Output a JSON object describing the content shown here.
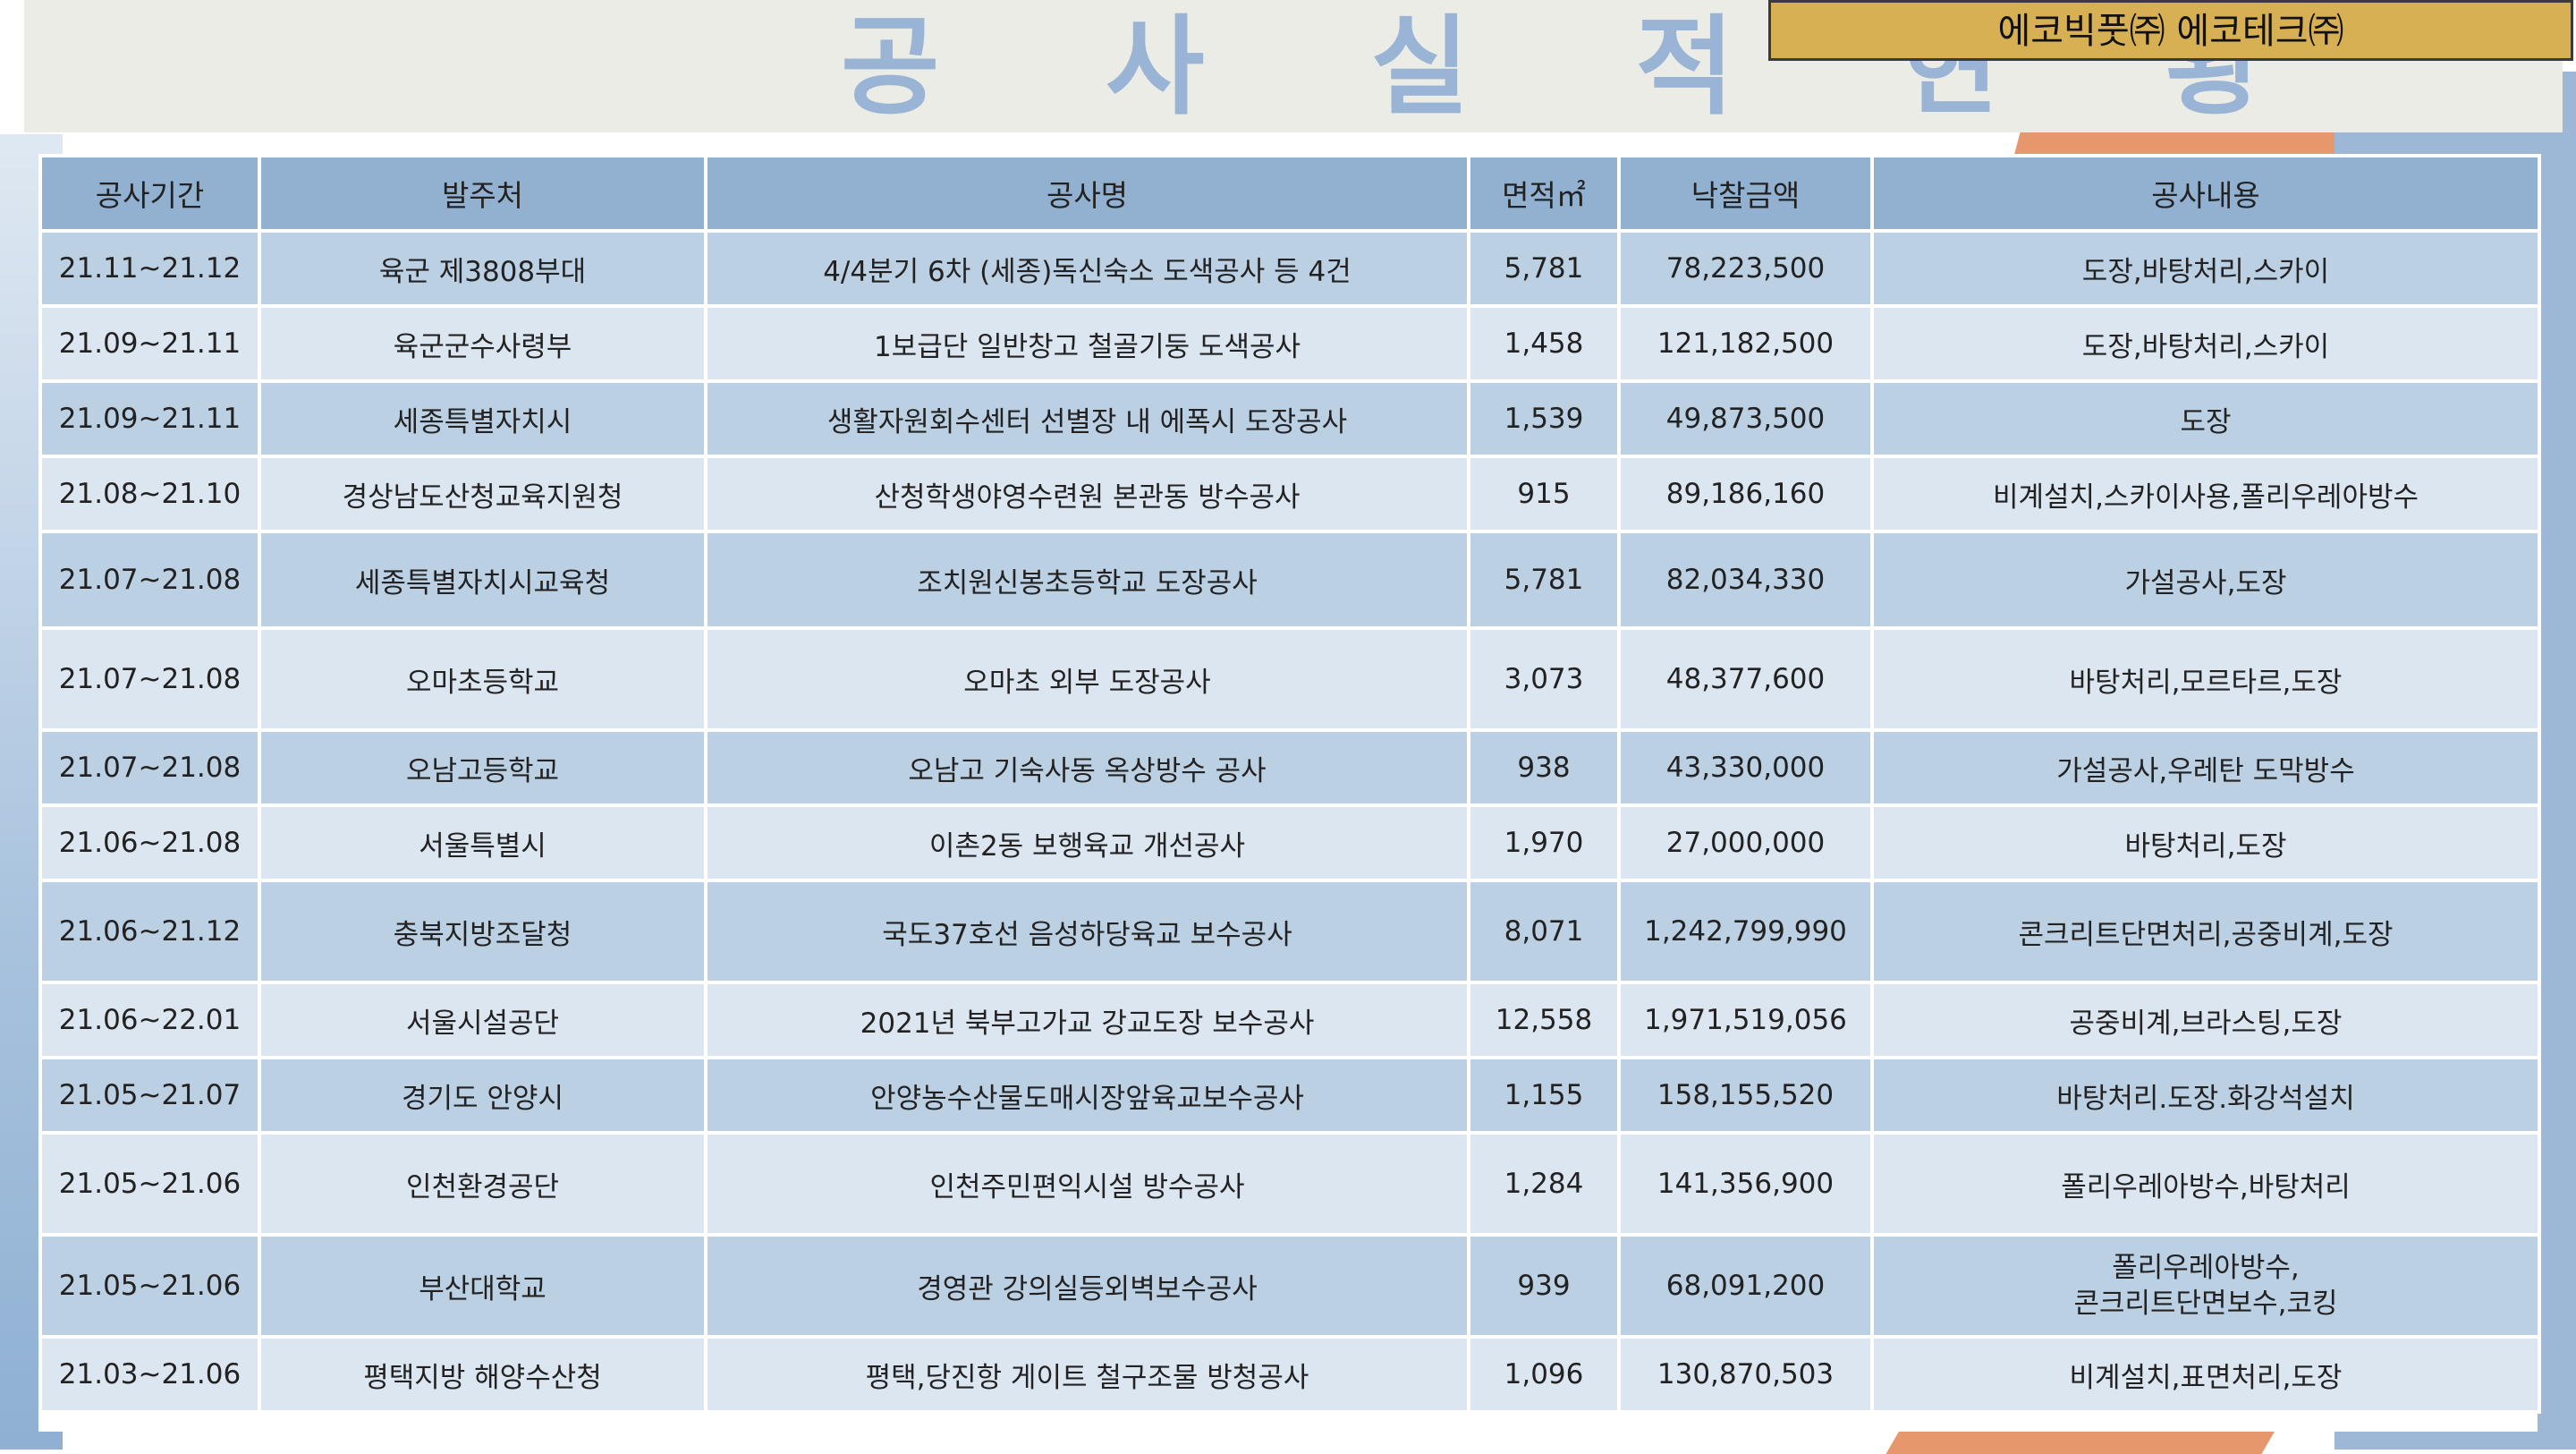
{
  "title": "공 사 실 적 현 황",
  "company": "에코빅풋㈜ 에코테크㈜",
  "table": {
    "headers": [
      "공사기간",
      "발주처",
      "공사명",
      "면적㎡",
      "낙찰금액",
      "공사내용"
    ],
    "rows": [
      {
        "period": "21.11~21.12",
        "client": "육군 제3808부대",
        "project": "4/4분기 6차 (세종)독신숙소 도색공사 등 4건",
        "area": "5,781",
        "amount": "78,223,500",
        "content": "도장,바탕처리,스카이"
      },
      {
        "period": "21.09~21.11",
        "client": "육군군수사령부",
        "project": "1보급단 일반창고 철골기둥 도색공사",
        "area": "1,458",
        "amount": "121,182,500",
        "content": "도장,바탕처리,스카이"
      },
      {
        "period": "21.09~21.11",
        "client": "세종특별자치시",
        "project": "생활자원회수센터 선별장 내 에폭시 도장공사",
        "area": "1,539",
        "amount": "49,873,500",
        "content": "도장"
      },
      {
        "period": "21.08~21.10",
        "client": "경상남도산청교육지원청",
        "project": "산청학생야영수련원 본관동 방수공사",
        "area": "915",
        "amount": "89,186,160",
        "content": "비계설치,스카이사용,폴리우레아방수"
      },
      {
        "period": "21.07~21.08",
        "client": "세종특별자치시교육청",
        "project": "조치원신봉초등학교 도장공사",
        "area": "5,781",
        "amount": "82,034,330",
        "content": "가설공사,도장"
      },
      {
        "period": "21.07~21.08",
        "client": "오마초등학교",
        "project": "오마초 외부 도장공사",
        "area": "3,073",
        "amount": "48,377,600",
        "content": "바탕처리,모르타르,도장"
      },
      {
        "period": "21.07~21.08",
        "client": "오남고등학교",
        "project": "오남고 기숙사동 옥상방수 공사",
        "area": "938",
        "amount": "43,330,000",
        "content": "가설공사,우레탄 도막방수"
      },
      {
        "period": "21.06~21.08",
        "client": "서울특별시",
        "project": "이촌2동 보행육교 개선공사",
        "area": "1,970",
        "amount": "27,000,000",
        "content": "바탕처리,도장"
      },
      {
        "period": "21.06~21.12",
        "client": "충북지방조달청",
        "project": "국도37호선 음성하당육교 보수공사",
        "area": "8,071",
        "amount": "1,242,799,990",
        "content": "콘크리트단면처리,공중비계,도장"
      },
      {
        "period": "21.06~22.01",
        "client": "서울시설공단",
        "project": "2021년 북부고가교 강교도장 보수공사",
        "area": "12,558",
        "amount": "1,971,519,056",
        "content": "공중비계,브라스팅,도장"
      },
      {
        "period": "21.05~21.07",
        "client": "경기도 안양시",
        "project": "안양농수산물도매시장앞육교보수공사",
        "area": "1,155",
        "amount": "158,155,520",
        "content": "바탕처리.도장.화강석설치"
      },
      {
        "period": "21.05~21.06",
        "client": "인천환경공단",
        "project": "인천주민편익시설 방수공사",
        "area": "1,284",
        "amount": "141,356,900",
        "content": "폴리우레아방수,바탕처리"
      },
      {
        "period": "21.05~21.06",
        "client": "부산대학교",
        "project": "경영관 강의실등외벽보수공사",
        "area": "939",
        "amount": "68,091,200",
        "content": "폴리우레아방수,\n콘크리트단면보수,코킹"
      },
      {
        "period": "21.03~21.06",
        "client": "평택지방 해양수산청",
        "project": "평택,당진항 게이트 철구조물 방청공사",
        "area": "1,096",
        "amount": "130,870,503",
        "content": "비계설치,표면처리,도장"
      }
    ]
  }
}
